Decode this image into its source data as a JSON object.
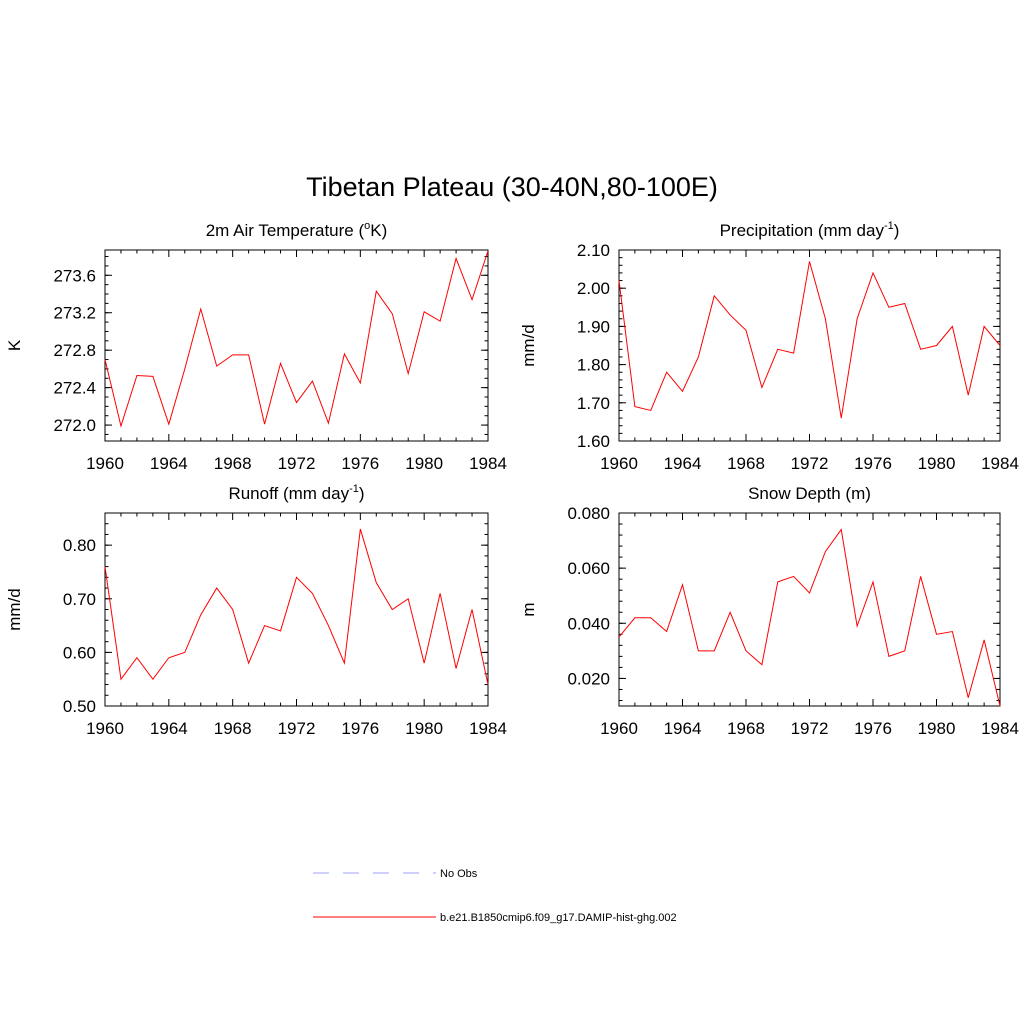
{
  "page_title": "Tibetan Plateau (30-40N,80-100E)",
  "legend": [
    {
      "label": "No Obs",
      "color": "#b3b3ff",
      "style": "dashed"
    },
    {
      "label": "b.e21.B1850cmip6.f09_g17.DAMIP-hist-ghg.002",
      "color": "#ff0000",
      "style": "solid"
    }
  ],
  "chart_data": [
    {
      "type": "line",
      "title": "2m Air Temperature (oK)",
      "title_parts": {
        "pre": "2m Air Temperature (",
        "sup": "o",
        "post": "K)"
      },
      "xlabel": "",
      "ylabel": "K",
      "xlim": [
        1960,
        1984
      ],
      "ylim": [
        271.83,
        273.87
      ],
      "x_ticks": [
        1960,
        1964,
        1968,
        1972,
        1976,
        1980,
        1984
      ],
      "y_ticks": [
        272.0,
        272.4,
        272.8,
        273.2,
        273.6
      ],
      "y_tick_labels": [
        "272.0",
        "272.4",
        "272.8",
        "273.2",
        "273.6"
      ],
      "y_minor_step": 0.1,
      "grid": false,
      "series": [
        {
          "color": "#ff0000",
          "x": [
            1960,
            1961,
            1962,
            1963,
            1964,
            1965,
            1966,
            1967,
            1968,
            1969,
            1970,
            1971,
            1972,
            1973,
            1974,
            1975,
            1976,
            1977,
            1978,
            1979,
            1980,
            1981,
            1982,
            1983,
            1984
          ],
          "values": [
            272.7,
            271.99,
            272.53,
            272.52,
            272.01,
            272.6,
            273.24,
            272.63,
            272.75,
            272.75,
            272.01,
            272.66,
            272.24,
            272.47,
            272.02,
            272.76,
            272.45,
            273.43,
            273.19,
            272.55,
            273.21,
            273.11,
            273.78,
            273.34,
            273.86
          ]
        }
      ]
    },
    {
      "type": "line",
      "title": "Precipitation (mm day-1)",
      "title_parts": {
        "pre": "Precipitation (mm day",
        "sup": "-1",
        "post": ")"
      },
      "xlabel": "",
      "ylabel": "mm/d",
      "xlim": [
        1960,
        1984
      ],
      "ylim": [
        1.6,
        2.1
      ],
      "x_ticks": [
        1960,
        1964,
        1968,
        1972,
        1976,
        1980,
        1984
      ],
      "y_ticks": [
        1.6,
        1.7,
        1.8,
        1.9,
        2.0,
        2.1
      ],
      "y_tick_labels": [
        "1.60",
        "1.70",
        "1.80",
        "1.90",
        "2.00",
        "2.10"
      ],
      "y_minor_step": 0.02,
      "grid": false,
      "series": [
        {
          "color": "#ff0000",
          "x": [
            1960,
            1961,
            1962,
            1963,
            1964,
            1965,
            1966,
            1967,
            1968,
            1969,
            1970,
            1971,
            1972,
            1973,
            1974,
            1975,
            1976,
            1977,
            1978,
            1979,
            1980,
            1981,
            1982,
            1983,
            1984
          ],
          "values": [
            2.02,
            1.69,
            1.68,
            1.78,
            1.73,
            1.82,
            1.98,
            1.93,
            1.89,
            1.74,
            1.84,
            1.83,
            2.07,
            1.92,
            1.66,
            1.92,
            2.04,
            1.95,
            1.96,
            1.84,
            1.85,
            1.9,
            1.72,
            1.9,
            1.85
          ]
        }
      ]
    },
    {
      "type": "line",
      "title": "Runoff (mm day-1)",
      "title_parts": {
        "pre": "Runoff (mm day",
        "sup": "-1",
        "post": ")"
      },
      "xlabel": "",
      "ylabel": "mm/d",
      "xlim": [
        1960,
        1984
      ],
      "ylim": [
        0.5,
        0.86
      ],
      "x_ticks": [
        1960,
        1964,
        1968,
        1972,
        1976,
        1980,
        1984
      ],
      "y_ticks": [
        0.5,
        0.6,
        0.7,
        0.8
      ],
      "y_tick_labels": [
        "0.50",
        "0.60",
        "0.70",
        "0.80"
      ],
      "y_minor_step": 0.02,
      "grid": false,
      "series": [
        {
          "color": "#ff0000",
          "x": [
            1960,
            1961,
            1962,
            1963,
            1964,
            1965,
            1966,
            1967,
            1968,
            1969,
            1970,
            1971,
            1972,
            1973,
            1974,
            1975,
            1976,
            1977,
            1978,
            1979,
            1980,
            1981,
            1982,
            1983,
            1984
          ],
          "values": [
            0.76,
            0.55,
            0.59,
            0.55,
            0.59,
            0.6,
            0.67,
            0.72,
            0.68,
            0.58,
            0.65,
            0.64,
            0.74,
            0.71,
            0.65,
            0.58,
            0.83,
            0.73,
            0.68,
            0.7,
            0.58,
            0.71,
            0.57,
            0.68,
            0.54
          ]
        }
      ]
    },
    {
      "type": "line",
      "title": "Snow Depth (m)",
      "title_parts": {
        "pre": "Snow Depth (m)",
        "sup": "",
        "post": ""
      },
      "xlabel": "",
      "ylabel": "m",
      "xlim": [
        1960,
        1984
      ],
      "ylim": [
        0.01,
        0.08
      ],
      "x_ticks": [
        1960,
        1964,
        1968,
        1972,
        1976,
        1980,
        1984
      ],
      "y_ticks": [
        0.02,
        0.04,
        0.06,
        0.08
      ],
      "y_tick_labels": [
        "0.020",
        "0.040",
        "0.060",
        "0.080"
      ],
      "y_minor_step": 0.004,
      "grid": false,
      "series": [
        {
          "color": "#ff0000",
          "x": [
            1960,
            1961,
            1962,
            1963,
            1964,
            1965,
            1966,
            1967,
            1968,
            1969,
            1970,
            1971,
            1972,
            1973,
            1974,
            1975,
            1976,
            1977,
            1978,
            1979,
            1980,
            1981,
            1982,
            1983,
            1984
          ],
          "values": [
            0.035,
            0.042,
            0.042,
            0.037,
            0.054,
            0.03,
            0.03,
            0.044,
            0.03,
            0.025,
            0.055,
            0.057,
            0.051,
            0.066,
            0.074,
            0.039,
            0.055,
            0.028,
            0.03,
            0.057,
            0.036,
            0.037,
            0.013,
            0.034,
            0.01
          ]
        }
      ]
    }
  ]
}
